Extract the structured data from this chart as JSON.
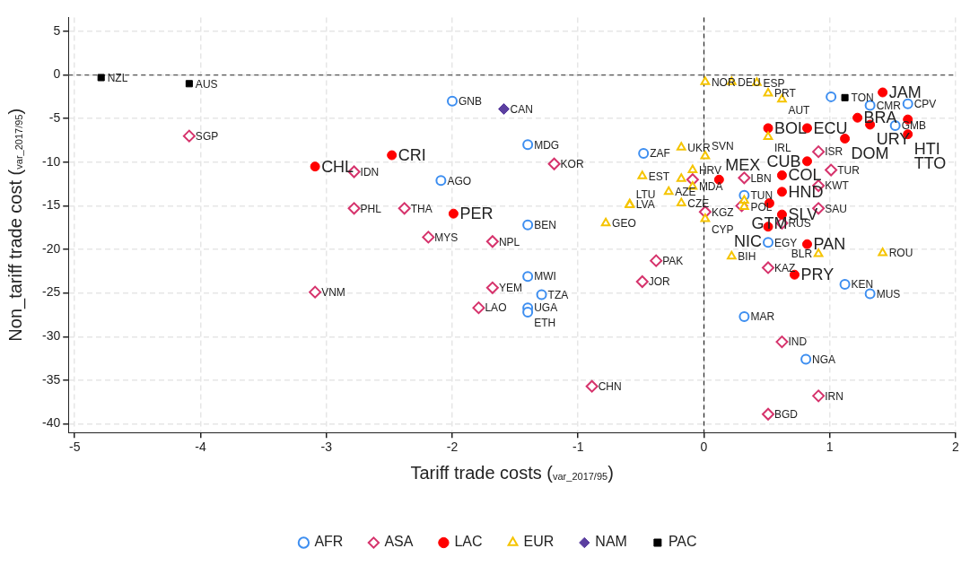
{
  "chart_data": {
    "type": "scatter",
    "xlabel": "Tariff trade costs ($_{var_2017/95}$)",
    "ylabel": "Non_tariff trade cost ($_{var_2017/95}$)",
    "xlim": [
      -5.05,
      2
    ],
    "xticks": [
      -5,
      -4,
      -3,
      -2,
      -1,
      0,
      1,
      2
    ],
    "ylim": [
      -41,
      6.6
    ],
    "yticks": [
      5,
      0,
      -5,
      -10,
      -15,
      -20,
      -25,
      -30,
      -35,
      -40
    ],
    "grid": true,
    "legend": "bottom",
    "ref_lines": [
      {
        "axis": "y",
        "value": 0,
        "color": "#555555",
        "line_style": "dashed"
      },
      {
        "axis": "x",
        "value": 0,
        "color": "#333333",
        "line_style": "dashed"
      }
    ],
    "series": [
      {
        "name": "AFR",
        "color": "#3d8ef0",
        "marker": "circle",
        "x": [
          -2.0,
          -1.4,
          -0.48,
          -2.09,
          -1.4,
          -1.4,
          -1.29,
          -1.4,
          -1.4,
          0.32,
          0.81,
          0.51,
          1.12,
          1.32,
          0.32,
          1.32,
          1.62,
          1.01,
          1.52
        ],
        "values": [
          -3.0,
          -8.0,
          -9.0,
          -12.1,
          -17.2,
          -23.1,
          -25.2,
          -26.7,
          -27.2,
          -27.7,
          -32.6,
          -19.2,
          -24.0,
          -25.1,
          -13.8,
          -3.5,
          -3.3,
          -2.5,
          -5.8
        ],
        "value_labels": [
          "GNB",
          "MDG",
          "ZAF",
          "AGO",
          "BEN",
          "MWI",
          "TZA",
          "UGA",
          "ETH",
          "MAR",
          "NGA",
          "EGY",
          "KEN",
          "MUS",
          "TUN",
          "CMR",
          "CPV",
          null,
          "GMB"
        ]
      },
      {
        "name": "ASA",
        "color": "#d6336c",
        "marker": "diamond",
        "x": [
          -4.09,
          -2.78,
          -2.78,
          -2.38,
          -1.19,
          -2.19,
          -1.68,
          -3.09,
          -1.68,
          -1.79,
          -0.38,
          -0.49,
          -0.89,
          0.51,
          0.62,
          0.91,
          0.51,
          0.91,
          1.01,
          0.91,
          0.91,
          0.01,
          0.32,
          -0.09,
          0.3,
          0.62
        ],
        "values": [
          -7.0,
          -11.1,
          -15.3,
          -15.3,
          -10.2,
          -18.6,
          -19.1,
          -24.9,
          -24.4,
          -26.7,
          -21.3,
          -23.7,
          -35.7,
          -22.1,
          -30.6,
          -36.8,
          -38.9,
          -8.8,
          -10.9,
          -12.7,
          -15.3,
          -15.7,
          -11.8,
          -12.0,
          -15.0,
          -17.0
        ],
        "value_labels": [
          "SGP",
          "IDN",
          "PHL",
          "THA",
          "KOR",
          "MYS",
          "NPL",
          "VNM",
          "YEM",
          "LAO",
          "PAK",
          "JOR",
          "CHN",
          "KAZ",
          "IND",
          "IRN",
          "BGD",
          "ISR",
          "TUR",
          "KWT",
          "SAU",
          "KGZ",
          "LBN",
          null,
          null,
          "RUS"
        ]
      },
      {
        "name": "LAC",
        "color": "#ff0000",
        "marker": "circle",
        "x": [
          -3.09,
          -2.48,
          -1.99,
          1.42,
          1.22,
          1.32,
          1.62,
          1.62,
          1.12,
          0.51,
          0.82,
          0.82,
          0.62,
          0.12,
          0.62,
          0.52,
          0.62,
          0.51,
          0.82,
          0.72
        ],
        "values": [
          -10.5,
          -9.2,
          -15.9,
          -2.0,
          -4.9,
          -5.7,
          -5.1,
          -6.8,
          -7.3,
          -6.1,
          -6.1,
          -9.9,
          -11.5,
          -12.0,
          -13.4,
          -14.7,
          -16.0,
          -17.4,
          -19.4,
          -22.9
        ],
        "value_labels": [
          "CHL",
          "CRI",
          "PER",
          "JAM",
          "BRA",
          "URY",
          "HTI",
          "TTO",
          "DOM",
          "BOL",
          "ECU",
          "CUB",
          "COL",
          "MEX",
          "HND",
          "GTM",
          "SLV",
          "NIC",
          "PAN",
          "PRY"
        ]
      },
      {
        "name": "EUR",
        "color": "#f5c400",
        "marker": "triangle",
        "x": [
          0.01,
          0.22,
          0.42,
          0.51,
          0.62,
          0.51,
          -0.18,
          0.01,
          -0.49,
          -0.09,
          -0.18,
          -0.09,
          -0.28,
          -0.18,
          -0.59,
          -0.59,
          0.01,
          -0.78,
          0.22,
          0.91,
          1.42,
          0.32,
          0.32
        ],
        "values": [
          -0.8,
          -0.8,
          -0.9,
          -2.1,
          -2.8,
          -7.1,
          -8.3,
          -9.3,
          -11.6,
          -10.9,
          -11.9,
          -12.8,
          -13.4,
          -14.7,
          -14.8,
          -14.9,
          -16.5,
          -17.0,
          -20.8,
          -20.5,
          -20.4,
          -14.4,
          -15.1
        ],
        "value_labels": [
          "NOR",
          "DEU",
          "ESP",
          "PRT",
          "AUT",
          "IRL",
          "UKR",
          "SVN",
          "EST",
          "HRV",
          null,
          "MDA",
          "AZE",
          "CZE",
          "LVA",
          "LTU",
          "CYP",
          "GEO",
          "BIH",
          "BLR",
          "ROU",
          null,
          "POL"
        ]
      },
      {
        "name": "NAM",
        "color": "#5b3fa0",
        "marker": "diamond",
        "x": [
          -1.59
        ],
        "values": [
          -3.9
        ],
        "value_labels": [
          "CAN"
        ]
      },
      {
        "name": "PAC",
        "color": "#000000",
        "marker": "square",
        "x": [
          -4.79,
          -4.09,
          1.12
        ],
        "values": [
          -0.3,
          -1.0,
          -2.6
        ],
        "value_labels": [
          "NZL",
          "AUS",
          "TON"
        ]
      }
    ]
  }
}
